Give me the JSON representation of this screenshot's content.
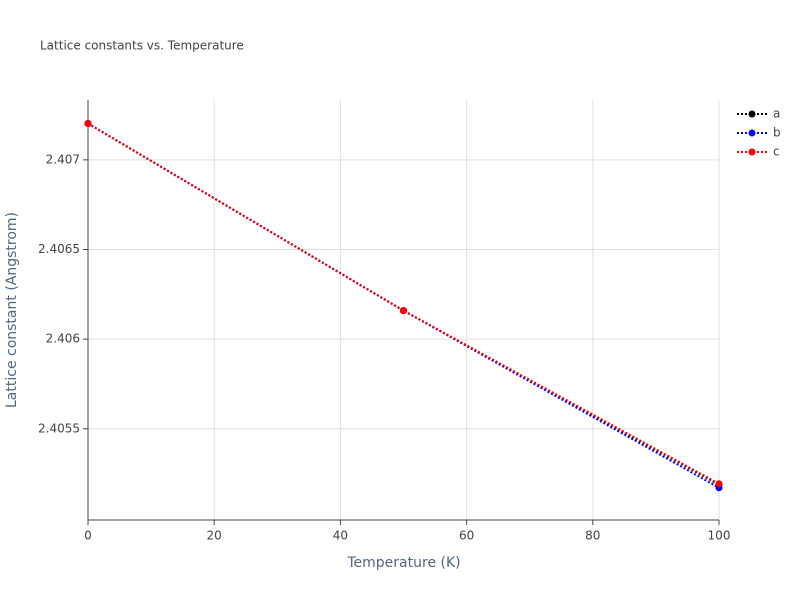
{
  "chart_data": {
    "type": "line",
    "title": "Lattice constants vs. Temperature",
    "x_label": "Temperature (K)",
    "y_label": "Lattice constant (Angstrom)",
    "x": [
      0,
      50,
      100
    ],
    "series": [
      {
        "name": "a",
        "color": "#000000",
        "values": [
          2.407203,
          2.406159,
          2.405188
        ]
      },
      {
        "name": "b",
        "color": "#0000ff",
        "values": [
          2.407203,
          2.406159,
          2.405171
        ]
      },
      {
        "name": "c",
        "color": "#ff0000",
        "values": [
          2.407203,
          2.406159,
          2.405193
        ]
      }
    ],
    "xlim": [
      0,
      100
    ],
    "xticks": [
      0,
      20,
      40,
      60,
      80,
      100
    ],
    "ylim": [
      2.404991,
      2.407334
    ],
    "yticks": [
      2.4055,
      2.406,
      2.4065,
      2.407
    ],
    "grid": true,
    "legend": "top-right"
  }
}
